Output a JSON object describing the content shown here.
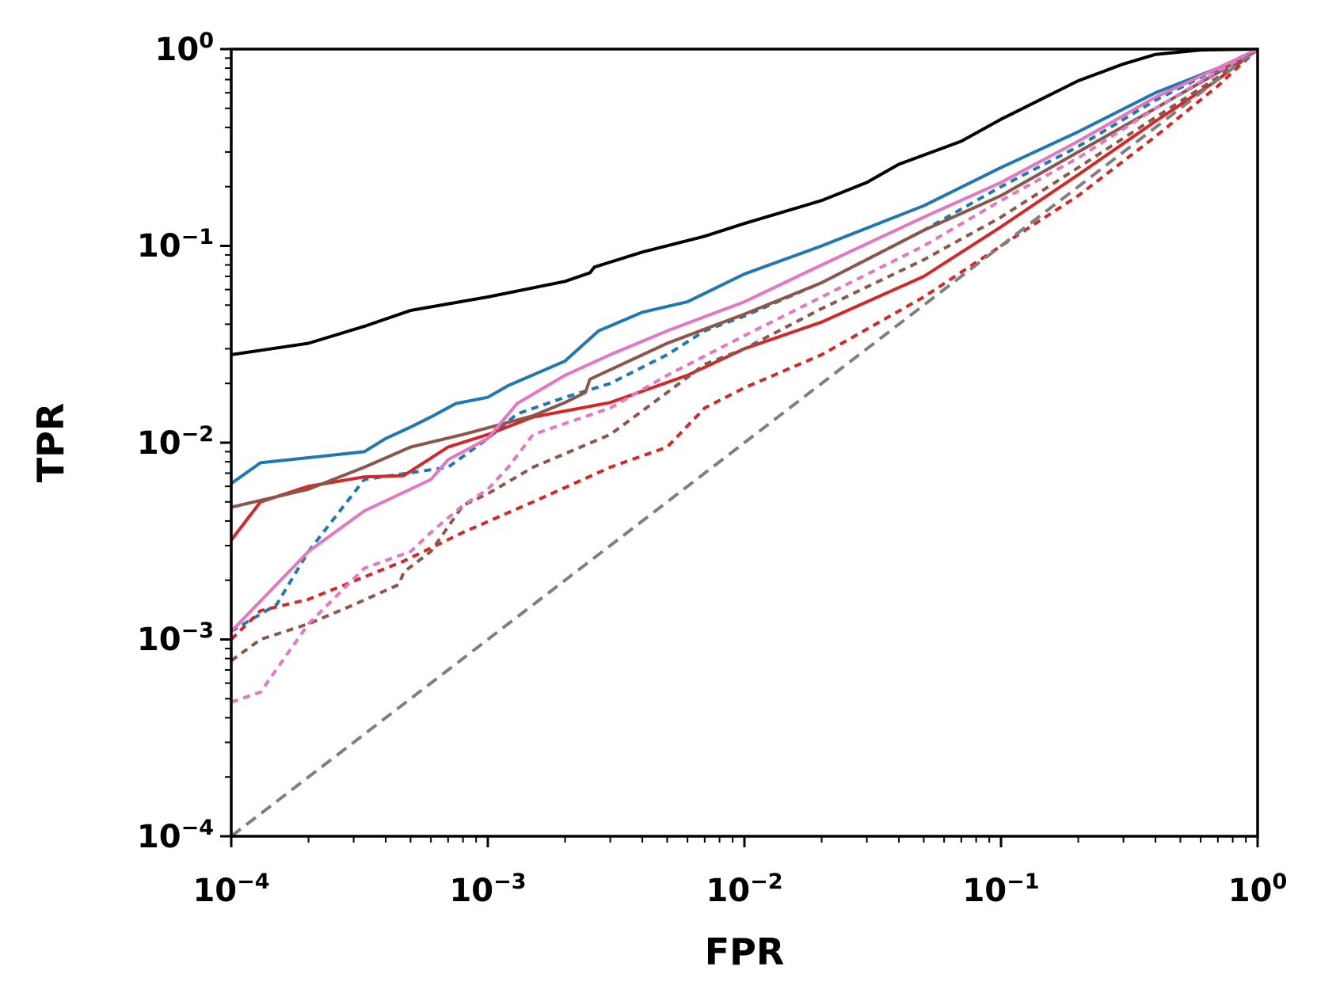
{
  "chart_data": {
    "type": "line",
    "xlabel": "FPR",
    "ylabel": "TPR",
    "xscale": "log",
    "yscale": "log",
    "xlim": [
      0.0001,
      1
    ],
    "ylim": [
      0.0001,
      1
    ],
    "grid": false,
    "x_ticks": [
      {
        "base": "10",
        "exp": "−4"
      },
      {
        "base": "10",
        "exp": "−3"
      },
      {
        "base": "10",
        "exp": "−2"
      },
      {
        "base": "10",
        "exp": "−1"
      },
      {
        "base": "10",
        "exp": "0"
      }
    ],
    "y_ticks": [
      {
        "base": "10",
        "exp": "−4"
      },
      {
        "base": "10",
        "exp": "−3"
      },
      {
        "base": "10",
        "exp": "−2"
      },
      {
        "base": "10",
        "exp": "−1"
      },
      {
        "base": "10",
        "exp": "0"
      }
    ],
    "series": [
      {
        "color": "#000000",
        "style": "solid",
        "points": [
          [
            0.0001,
            0.028
          ],
          [
            0.0002,
            0.032
          ],
          [
            0.00033,
            0.039
          ],
          [
            0.0005,
            0.047
          ],
          [
            0.001,
            0.055
          ],
          [
            0.002,
            0.066
          ],
          [
            0.0025,
            0.073
          ],
          [
            0.0026,
            0.078
          ],
          [
            0.004,
            0.093
          ],
          [
            0.007,
            0.112
          ],
          [
            0.01,
            0.13
          ],
          [
            0.02,
            0.17
          ],
          [
            0.03,
            0.21
          ],
          [
            0.04,
            0.26
          ],
          [
            0.07,
            0.34
          ],
          [
            0.1,
            0.44
          ],
          [
            0.2,
            0.69
          ],
          [
            0.3,
            0.84
          ],
          [
            0.4,
            0.94
          ],
          [
            0.6,
            0.99
          ],
          [
            1,
            1
          ]
        ]
      },
      {
        "color": "#1f77b4",
        "style": "solid",
        "points": [
          [
            0.0001,
            0.0062
          ],
          [
            0.00013,
            0.0079
          ],
          [
            0.00033,
            0.009
          ],
          [
            0.0004,
            0.0105
          ],
          [
            0.0005,
            0.012
          ],
          [
            0.0006,
            0.0135
          ],
          [
            0.00075,
            0.0158
          ],
          [
            0.001,
            0.017
          ],
          [
            0.0012,
            0.0195
          ],
          [
            0.002,
            0.026
          ],
          [
            0.0027,
            0.037
          ],
          [
            0.004,
            0.046
          ],
          [
            0.006,
            0.052
          ],
          [
            0.01,
            0.072
          ],
          [
            0.02,
            0.1
          ],
          [
            0.05,
            0.16
          ],
          [
            0.1,
            0.25
          ],
          [
            0.2,
            0.38
          ],
          [
            0.4,
            0.6
          ],
          [
            0.7,
            0.8
          ],
          [
            1,
            1
          ]
        ]
      },
      {
        "color": "#1f77b4",
        "style": "dotted",
        "points": [
          [
            0.0001,
            0.0011
          ],
          [
            0.00015,
            0.0015
          ],
          [
            0.0002,
            0.0028
          ],
          [
            0.00033,
            0.0065
          ],
          [
            0.0007,
            0.0075
          ],
          [
            0.001,
            0.0105
          ],
          [
            0.0013,
            0.014
          ],
          [
            0.002,
            0.017
          ],
          [
            0.003,
            0.02
          ],
          [
            0.005,
            0.028
          ],
          [
            0.007,
            0.037
          ],
          [
            0.01,
            0.044
          ],
          [
            0.02,
            0.065
          ],
          [
            0.05,
            0.12
          ],
          [
            0.1,
            0.2
          ],
          [
            0.2,
            0.32
          ],
          [
            0.4,
            0.55
          ],
          [
            1,
            1
          ]
        ]
      },
      {
        "color": "#d62728",
        "style": "solid",
        "points": [
          [
            0.0001,
            0.0032
          ],
          [
            0.00013,
            0.005
          ],
          [
            0.0002,
            0.006
          ],
          [
            0.00033,
            0.0067
          ],
          [
            0.00047,
            0.0068
          ],
          [
            0.0007,
            0.0095
          ],
          [
            0.001,
            0.011
          ],
          [
            0.0015,
            0.0135
          ],
          [
            0.003,
            0.016
          ],
          [
            0.006,
            0.022
          ],
          [
            0.01,
            0.03
          ],
          [
            0.02,
            0.041
          ],
          [
            0.05,
            0.07
          ],
          [
            0.1,
            0.125
          ],
          [
            0.2,
            0.23
          ],
          [
            0.4,
            0.43
          ],
          [
            0.7,
            0.7
          ],
          [
            1,
            1
          ]
        ]
      },
      {
        "color": "#d62728",
        "style": "dotted",
        "points": [
          [
            0.0001,
            0.001
          ],
          [
            0.00013,
            0.0014
          ],
          [
            0.0002,
            0.0016
          ],
          [
            0.00047,
            0.0025
          ],
          [
            0.0008,
            0.0035
          ],
          [
            0.0015,
            0.005
          ],
          [
            0.003,
            0.0075
          ],
          [
            0.005,
            0.0095
          ],
          [
            0.007,
            0.015
          ],
          [
            0.01,
            0.019
          ],
          [
            0.02,
            0.028
          ],
          [
            0.05,
            0.055
          ],
          [
            0.1,
            0.1
          ],
          [
            0.2,
            0.18
          ],
          [
            0.4,
            0.36
          ],
          [
            0.7,
            0.65
          ],
          [
            1,
            1
          ]
        ]
      },
      {
        "color": "#8c564b",
        "style": "solid",
        "points": [
          [
            0.0001,
            0.0047
          ],
          [
            0.0002,
            0.0058
          ],
          [
            0.00033,
            0.0075
          ],
          [
            0.0005,
            0.0095
          ],
          [
            0.0008,
            0.011
          ],
          [
            0.0015,
            0.0137
          ],
          [
            0.002,
            0.016
          ],
          [
            0.0024,
            0.018
          ],
          [
            0.0025,
            0.021
          ],
          [
            0.005,
            0.032
          ],
          [
            0.01,
            0.045
          ],
          [
            0.02,
            0.065
          ],
          [
            0.05,
            0.12
          ],
          [
            0.1,
            0.18
          ],
          [
            0.2,
            0.3
          ],
          [
            0.4,
            0.5
          ],
          [
            0.7,
            0.76
          ],
          [
            1,
            1
          ]
        ]
      },
      {
        "color": "#8c564b",
        "style": "dotted",
        "points": [
          [
            0.0001,
            0.00078
          ],
          [
            0.00013,
            0.001
          ],
          [
            0.0002,
            0.0012
          ],
          [
            0.0003,
            0.0015
          ],
          [
            0.00045,
            0.0019
          ],
          [
            0.00047,
            0.0022
          ],
          [
            0.0006,
            0.0028
          ],
          [
            0.0008,
            0.0048
          ],
          [
            0.001,
            0.0055
          ],
          [
            0.0015,
            0.0075
          ],
          [
            0.003,
            0.011
          ],
          [
            0.005,
            0.018
          ],
          [
            0.007,
            0.025
          ],
          [
            0.01,
            0.03
          ],
          [
            0.02,
            0.048
          ],
          [
            0.05,
            0.085
          ],
          [
            0.1,
            0.14
          ],
          [
            0.2,
            0.25
          ],
          [
            0.4,
            0.45
          ],
          [
            0.7,
            0.72
          ],
          [
            1,
            1
          ]
        ]
      },
      {
        "color": "#e377c2",
        "style": "solid",
        "points": [
          [
            0.0001,
            0.0011
          ],
          [
            0.0002,
            0.0028
          ],
          [
            0.00033,
            0.0045
          ],
          [
            0.0006,
            0.0065
          ],
          [
            0.0007,
            0.0082
          ],
          [
            0.001,
            0.0105
          ],
          [
            0.0013,
            0.0158
          ],
          [
            0.002,
            0.022
          ],
          [
            0.003,
            0.028
          ],
          [
            0.005,
            0.037
          ],
          [
            0.01,
            0.052
          ],
          [
            0.02,
            0.08
          ],
          [
            0.05,
            0.14
          ],
          [
            0.1,
            0.21
          ],
          [
            0.2,
            0.34
          ],
          [
            0.4,
            0.57
          ],
          [
            0.7,
            0.8
          ],
          [
            1,
            1
          ]
        ]
      },
      {
        "color": "#e377c2",
        "style": "dotted",
        "points": [
          [
            0.0001,
            0.00048
          ],
          [
            0.00013,
            0.00054
          ],
          [
            0.0002,
            0.0012
          ],
          [
            0.00033,
            0.0023
          ],
          [
            0.0005,
            0.0028
          ],
          [
            0.0006,
            0.0035
          ],
          [
            0.0008,
            0.0048
          ],
          [
            0.001,
            0.0058
          ],
          [
            0.0012,
            0.0075
          ],
          [
            0.0015,
            0.011
          ],
          [
            0.003,
            0.015
          ],
          [
            0.005,
            0.022
          ],
          [
            0.01,
            0.035
          ],
          [
            0.02,
            0.055
          ],
          [
            0.05,
            0.1
          ],
          [
            0.1,
            0.17
          ],
          [
            0.2,
            0.28
          ],
          [
            0.4,
            0.5
          ],
          [
            0.7,
            0.77
          ],
          [
            1,
            1
          ]
        ]
      },
      {
        "color": "#7f7f7f",
        "style": "dashed",
        "points": [
          [
            0.0001,
            0.0001
          ],
          [
            1,
            1
          ]
        ]
      }
    ]
  }
}
